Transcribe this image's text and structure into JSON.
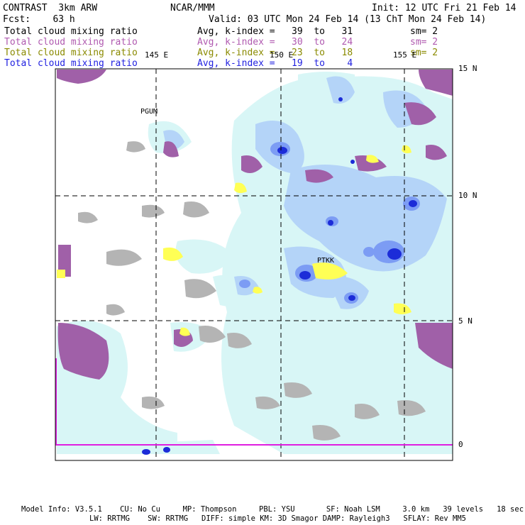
{
  "header": {
    "left_title": "CONTRAST  3km ARW",
    "center_title": "NCAR/MMM",
    "init": "Init: 12 UTC Fri 21 Feb 14",
    "forecast": "Fcst:    63 h",
    "valid": "Valid: 03 UTC Mon 24 Feb 14 (13 ChT Mon 24 Feb 14)"
  },
  "legend": [
    {
      "field": "Total cloud mixing ratio",
      "stat": "Avg, k-index =   39  to   31",
      "smooth": "sm= 2",
      "color": "#000000"
    },
    {
      "field": "Total cloud mixing ratio",
      "stat": "Avg, k-index =   30  to   24",
      "smooth": "sm= 2",
      "color": "#b05ab0"
    },
    {
      "field": "Total cloud mixing ratio",
      "stat": "Avg, k-index =   23  to   18",
      "smooth": "sm= 2",
      "color": "#8a8a00"
    },
    {
      "field": "Total cloud mixing ratio",
      "stat": "Avg, k-index =   19  to    4",
      "smooth": "",
      "color": "#1f1fe0"
    }
  ],
  "map": {
    "lon_labels": [
      "145 E",
      "150 E",
      "155 E"
    ],
    "lat_labels": [
      "15 N",
      "10 N",
      "5 N",
      "0"
    ],
    "stations": [
      "PGUM",
      "PTKK"
    ],
    "colors": {
      "gray": "#b4b4b4",
      "purple": "#a060a8",
      "yellow": "#ffff55",
      "pale_cyan": "#d8f6f6",
      "light_blue": "#b4d4f8",
      "mid_blue": "#7c9cf4",
      "dark_blue": "#1c2cd8"
    }
  },
  "footer": {
    "line1": "Model Info: V3.5.1    CU: No Cu     MP: Thompson     PBL: YSU       SF: Noah LSM     3.0 km   39 levels   18 sec",
    "line2": "LW: RRTMG    SW: RRTMG   DIFF: simple KM: 3D Smagor DAMP: Rayleigh3   SFLAY: Rev MM5"
  }
}
